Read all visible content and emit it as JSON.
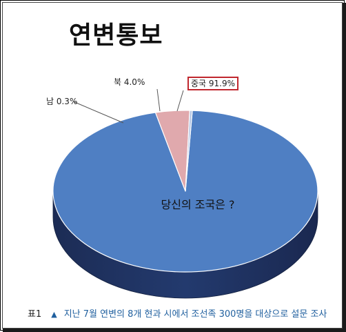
{
  "chart_data": {
    "type": "pie",
    "title": "연변통보",
    "center_label": "당신의 조국은 ?",
    "slices": [
      {
        "name": "중국",
        "value": 91.9,
        "label": "중국 91.9%",
        "color": "#4f7fc3",
        "highlighted": true
      },
      {
        "name": "북",
        "value": 4.0,
        "label": "북 4.0%",
        "color": "#e0a9ad",
        "highlighted": false
      },
      {
        "name": "남",
        "value": 0.3,
        "label": "남 0.3%",
        "color": "#b4c6e4",
        "highlighted": false
      }
    ]
  },
  "caption": {
    "number": "표1",
    "marker": "▲",
    "text": "지난 7월 연변의 8개 현과 시에서 조선족 300명을 대상으로 설문 조사"
  }
}
